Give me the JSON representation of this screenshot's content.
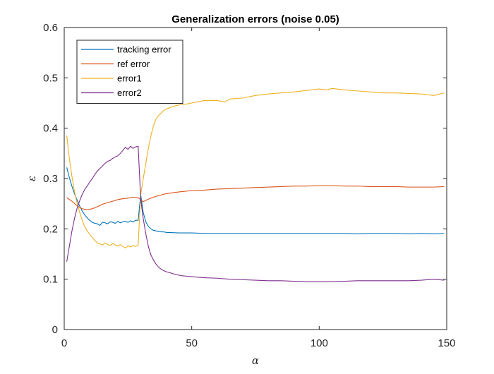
{
  "chart_data": {
    "type": "line",
    "title": "Generalization errors (noise 0.05)",
    "xlabel": "α",
    "ylabel": "ε",
    "xlim": [
      0,
      150
    ],
    "ylim": [
      0,
      0.6
    ],
    "xticks": [
      0,
      50,
      100,
      150
    ],
    "yticks": [
      0,
      0.1,
      0.2,
      0.3,
      0.4,
      0.5,
      0.6
    ],
    "grid": false,
    "legend_location": "top-left",
    "colors": {
      "tracking error": "#0072BD",
      "ref error": "#D95319",
      "error1": "#EDB120",
      "error2": "#7E2F8E"
    },
    "series": [
      {
        "name": "tracking error",
        "points": [
          [
            1,
            0.322
          ],
          [
            2,
            0.302
          ],
          [
            3,
            0.285
          ],
          [
            4,
            0.27
          ],
          [
            5,
            0.258
          ],
          [
            6,
            0.246
          ],
          [
            7,
            0.236
          ],
          [
            8,
            0.228
          ],
          [
            9,
            0.222
          ],
          [
            10,
            0.217
          ],
          [
            11,
            0.213
          ],
          [
            12,
            0.211
          ],
          [
            13,
            0.21
          ],
          [
            14,
            0.207
          ],
          [
            15,
            0.213
          ],
          [
            16,
            0.212
          ],
          [
            17,
            0.21
          ],
          [
            18,
            0.214
          ],
          [
            19,
            0.213
          ],
          [
            20,
            0.211
          ],
          [
            21,
            0.215
          ],
          [
            22,
            0.212
          ],
          [
            23,
            0.214
          ],
          [
            24,
            0.215
          ],
          [
            25,
            0.213
          ],
          [
            26,
            0.216
          ],
          [
            27,
            0.214
          ],
          [
            28,
            0.217
          ],
          [
            29,
            0.217
          ],
          [
            30,
            0.268
          ],
          [
            31,
            0.232
          ],
          [
            32,
            0.214
          ],
          [
            33,
            0.205
          ],
          [
            34,
            0.2
          ],
          [
            35,
            0.197
          ],
          [
            36,
            0.196
          ],
          [
            37,
            0.195
          ],
          [
            38,
            0.194
          ],
          [
            39,
            0.194
          ],
          [
            40,
            0.193
          ],
          [
            45,
            0.192
          ],
          [
            50,
            0.192
          ],
          [
            55,
            0.191
          ],
          [
            60,
            0.191
          ],
          [
            65,
            0.191
          ],
          [
            70,
            0.191
          ],
          [
            75,
            0.191
          ],
          [
            80,
            0.191
          ],
          [
            85,
            0.191
          ],
          [
            90,
            0.191
          ],
          [
            95,
            0.191
          ],
          [
            100,
            0.191
          ],
          [
            105,
            0.191
          ],
          [
            110,
            0.191
          ],
          [
            115,
            0.19
          ],
          [
            120,
            0.191
          ],
          [
            125,
            0.191
          ],
          [
            130,
            0.191
          ],
          [
            135,
            0.19
          ],
          [
            140,
            0.191
          ],
          [
            145,
            0.19
          ],
          [
            149,
            0.191
          ]
        ]
      },
      {
        "name": "ref error",
        "points": [
          [
            1,
            0.262
          ],
          [
            3,
            0.255
          ],
          [
            5,
            0.246
          ],
          [
            7,
            0.24
          ],
          [
            9,
            0.238
          ],
          [
            11,
            0.24
          ],
          [
            13,
            0.244
          ],
          [
            15,
            0.249
          ],
          [
            17,
            0.252
          ],
          [
            19,
            0.255
          ],
          [
            21,
            0.258
          ],
          [
            23,
            0.26
          ],
          [
            25,
            0.261
          ],
          [
            27,
            0.263
          ],
          [
            29,
            0.262
          ],
          [
            30,
            0.258
          ],
          [
            31,
            0.254
          ],
          [
            33,
            0.259
          ],
          [
            35,
            0.263
          ],
          [
            37,
            0.266
          ],
          [
            40,
            0.27
          ],
          [
            43,
            0.272
          ],
          [
            46,
            0.274
          ],
          [
            50,
            0.276
          ],
          [
            55,
            0.277
          ],
          [
            60,
            0.279
          ],
          [
            65,
            0.28
          ],
          [
            70,
            0.281
          ],
          [
            75,
            0.282
          ],
          [
            80,
            0.283
          ],
          [
            85,
            0.284
          ],
          [
            90,
            0.285
          ],
          [
            95,
            0.285
          ],
          [
            100,
            0.286
          ],
          [
            105,
            0.286
          ],
          [
            110,
            0.285
          ],
          [
            115,
            0.285
          ],
          [
            120,
            0.284
          ],
          [
            125,
            0.284
          ],
          [
            130,
            0.284
          ],
          [
            135,
            0.283
          ],
          [
            140,
            0.283
          ],
          [
            145,
            0.283
          ],
          [
            149,
            0.284
          ]
        ]
      },
      {
        "name": "error1",
        "points": [
          [
            1,
            0.385
          ],
          [
            2,
            0.34
          ],
          [
            3,
            0.305
          ],
          [
            4,
            0.275
          ],
          [
            5,
            0.252
          ],
          [
            6,
            0.234
          ],
          [
            7,
            0.218
          ],
          [
            8,
            0.205
          ],
          [
            9,
            0.196
          ],
          [
            10,
            0.189
          ],
          [
            11,
            0.183
          ],
          [
            12,
            0.177
          ],
          [
            13,
            0.172
          ],
          [
            14,
            0.17
          ],
          [
            15,
            0.168
          ],
          [
            16,
            0.172
          ],
          [
            17,
            0.169
          ],
          [
            18,
            0.167
          ],
          [
            19,
            0.171
          ],
          [
            20,
            0.168
          ],
          [
            21,
            0.166
          ],
          [
            22,
            0.169
          ],
          [
            23,
            0.165
          ],
          [
            24,
            0.162
          ],
          [
            25,
            0.166
          ],
          [
            26,
            0.164
          ],
          [
            27,
            0.167
          ],
          [
            28,
            0.165
          ],
          [
            29,
            0.168
          ],
          [
            30,
            0.268
          ],
          [
            31,
            0.3
          ],
          [
            32,
            0.33
          ],
          [
            33,
            0.36
          ],
          [
            34,
            0.385
          ],
          [
            35,
            0.405
          ],
          [
            36,
            0.418
          ],
          [
            37,
            0.425
          ],
          [
            38,
            0.43
          ],
          [
            39,
            0.435
          ],
          [
            40,
            0.438
          ],
          [
            42,
            0.442
          ],
          [
            44,
            0.445
          ],
          [
            46,
            0.447
          ],
          [
            48,
            0.448
          ],
          [
            50,
            0.45
          ],
          [
            55,
            0.455
          ],
          [
            60,
            0.455
          ],
          [
            63,
            0.452
          ],
          [
            65,
            0.458
          ],
          [
            70,
            0.46
          ],
          [
            75,
            0.465
          ],
          [
            80,
            0.468
          ],
          [
            85,
            0.47
          ],
          [
            90,
            0.472
          ],
          [
            95,
            0.475
          ],
          [
            100,
            0.478
          ],
          [
            103,
            0.476
          ],
          [
            105,
            0.479
          ],
          [
            110,
            0.476
          ],
          [
            115,
            0.474
          ],
          [
            120,
            0.472
          ],
          [
            125,
            0.47
          ],
          [
            130,
            0.47
          ],
          [
            135,
            0.469
          ],
          [
            140,
            0.468
          ],
          [
            145,
            0.465
          ],
          [
            149,
            0.47
          ]
        ]
      },
      {
        "name": "error2",
        "points": [
          [
            1,
            0.135
          ],
          [
            2,
            0.165
          ],
          [
            3,
            0.195
          ],
          [
            4,
            0.22
          ],
          [
            5,
            0.24
          ],
          [
            6,
            0.255
          ],
          [
            7,
            0.268
          ],
          [
            8,
            0.278
          ],
          [
            9,
            0.285
          ],
          [
            10,
            0.293
          ],
          [
            11,
            0.3
          ],
          [
            12,
            0.308
          ],
          [
            13,
            0.315
          ],
          [
            14,
            0.32
          ],
          [
            15,
            0.325
          ],
          [
            16,
            0.33
          ],
          [
            17,
            0.334
          ],
          [
            18,
            0.336
          ],
          [
            19,
            0.34
          ],
          [
            20,
            0.343
          ],
          [
            21,
            0.345
          ],
          [
            22,
            0.35
          ],
          [
            23,
            0.356
          ],
          [
            24,
            0.362
          ],
          [
            25,
            0.358
          ],
          [
            26,
            0.364
          ],
          [
            27,
            0.36
          ],
          [
            28,
            0.363
          ],
          [
            29,
            0.364
          ],
          [
            30,
            0.258
          ],
          [
            31,
            0.22
          ],
          [
            32,
            0.19
          ],
          [
            33,
            0.165
          ],
          [
            34,
            0.148
          ],
          [
            35,
            0.138
          ],
          [
            36,
            0.13
          ],
          [
            37,
            0.124
          ],
          [
            38,
            0.12
          ],
          [
            39,
            0.117
          ],
          [
            40,
            0.115
          ],
          [
            42,
            0.112
          ],
          [
            44,
            0.109
          ],
          [
            46,
            0.107
          ],
          [
            48,
            0.106
          ],
          [
            50,
            0.105
          ],
          [
            55,
            0.103
          ],
          [
            60,
            0.102
          ],
          [
            65,
            0.1
          ],
          [
            70,
            0.099
          ],
          [
            75,
            0.098
          ],
          [
            80,
            0.097
          ],
          [
            85,
            0.097
          ],
          [
            90,
            0.096
          ],
          [
            95,
            0.095
          ],
          [
            100,
            0.095
          ],
          [
            105,
            0.095
          ],
          [
            110,
            0.096
          ],
          [
            115,
            0.097
          ],
          [
            120,
            0.097
          ],
          [
            125,
            0.097
          ],
          [
            130,
            0.097
          ],
          [
            135,
            0.097
          ],
          [
            140,
            0.098
          ],
          [
            145,
            0.1
          ],
          [
            149,
            0.098
          ]
        ]
      }
    ]
  }
}
